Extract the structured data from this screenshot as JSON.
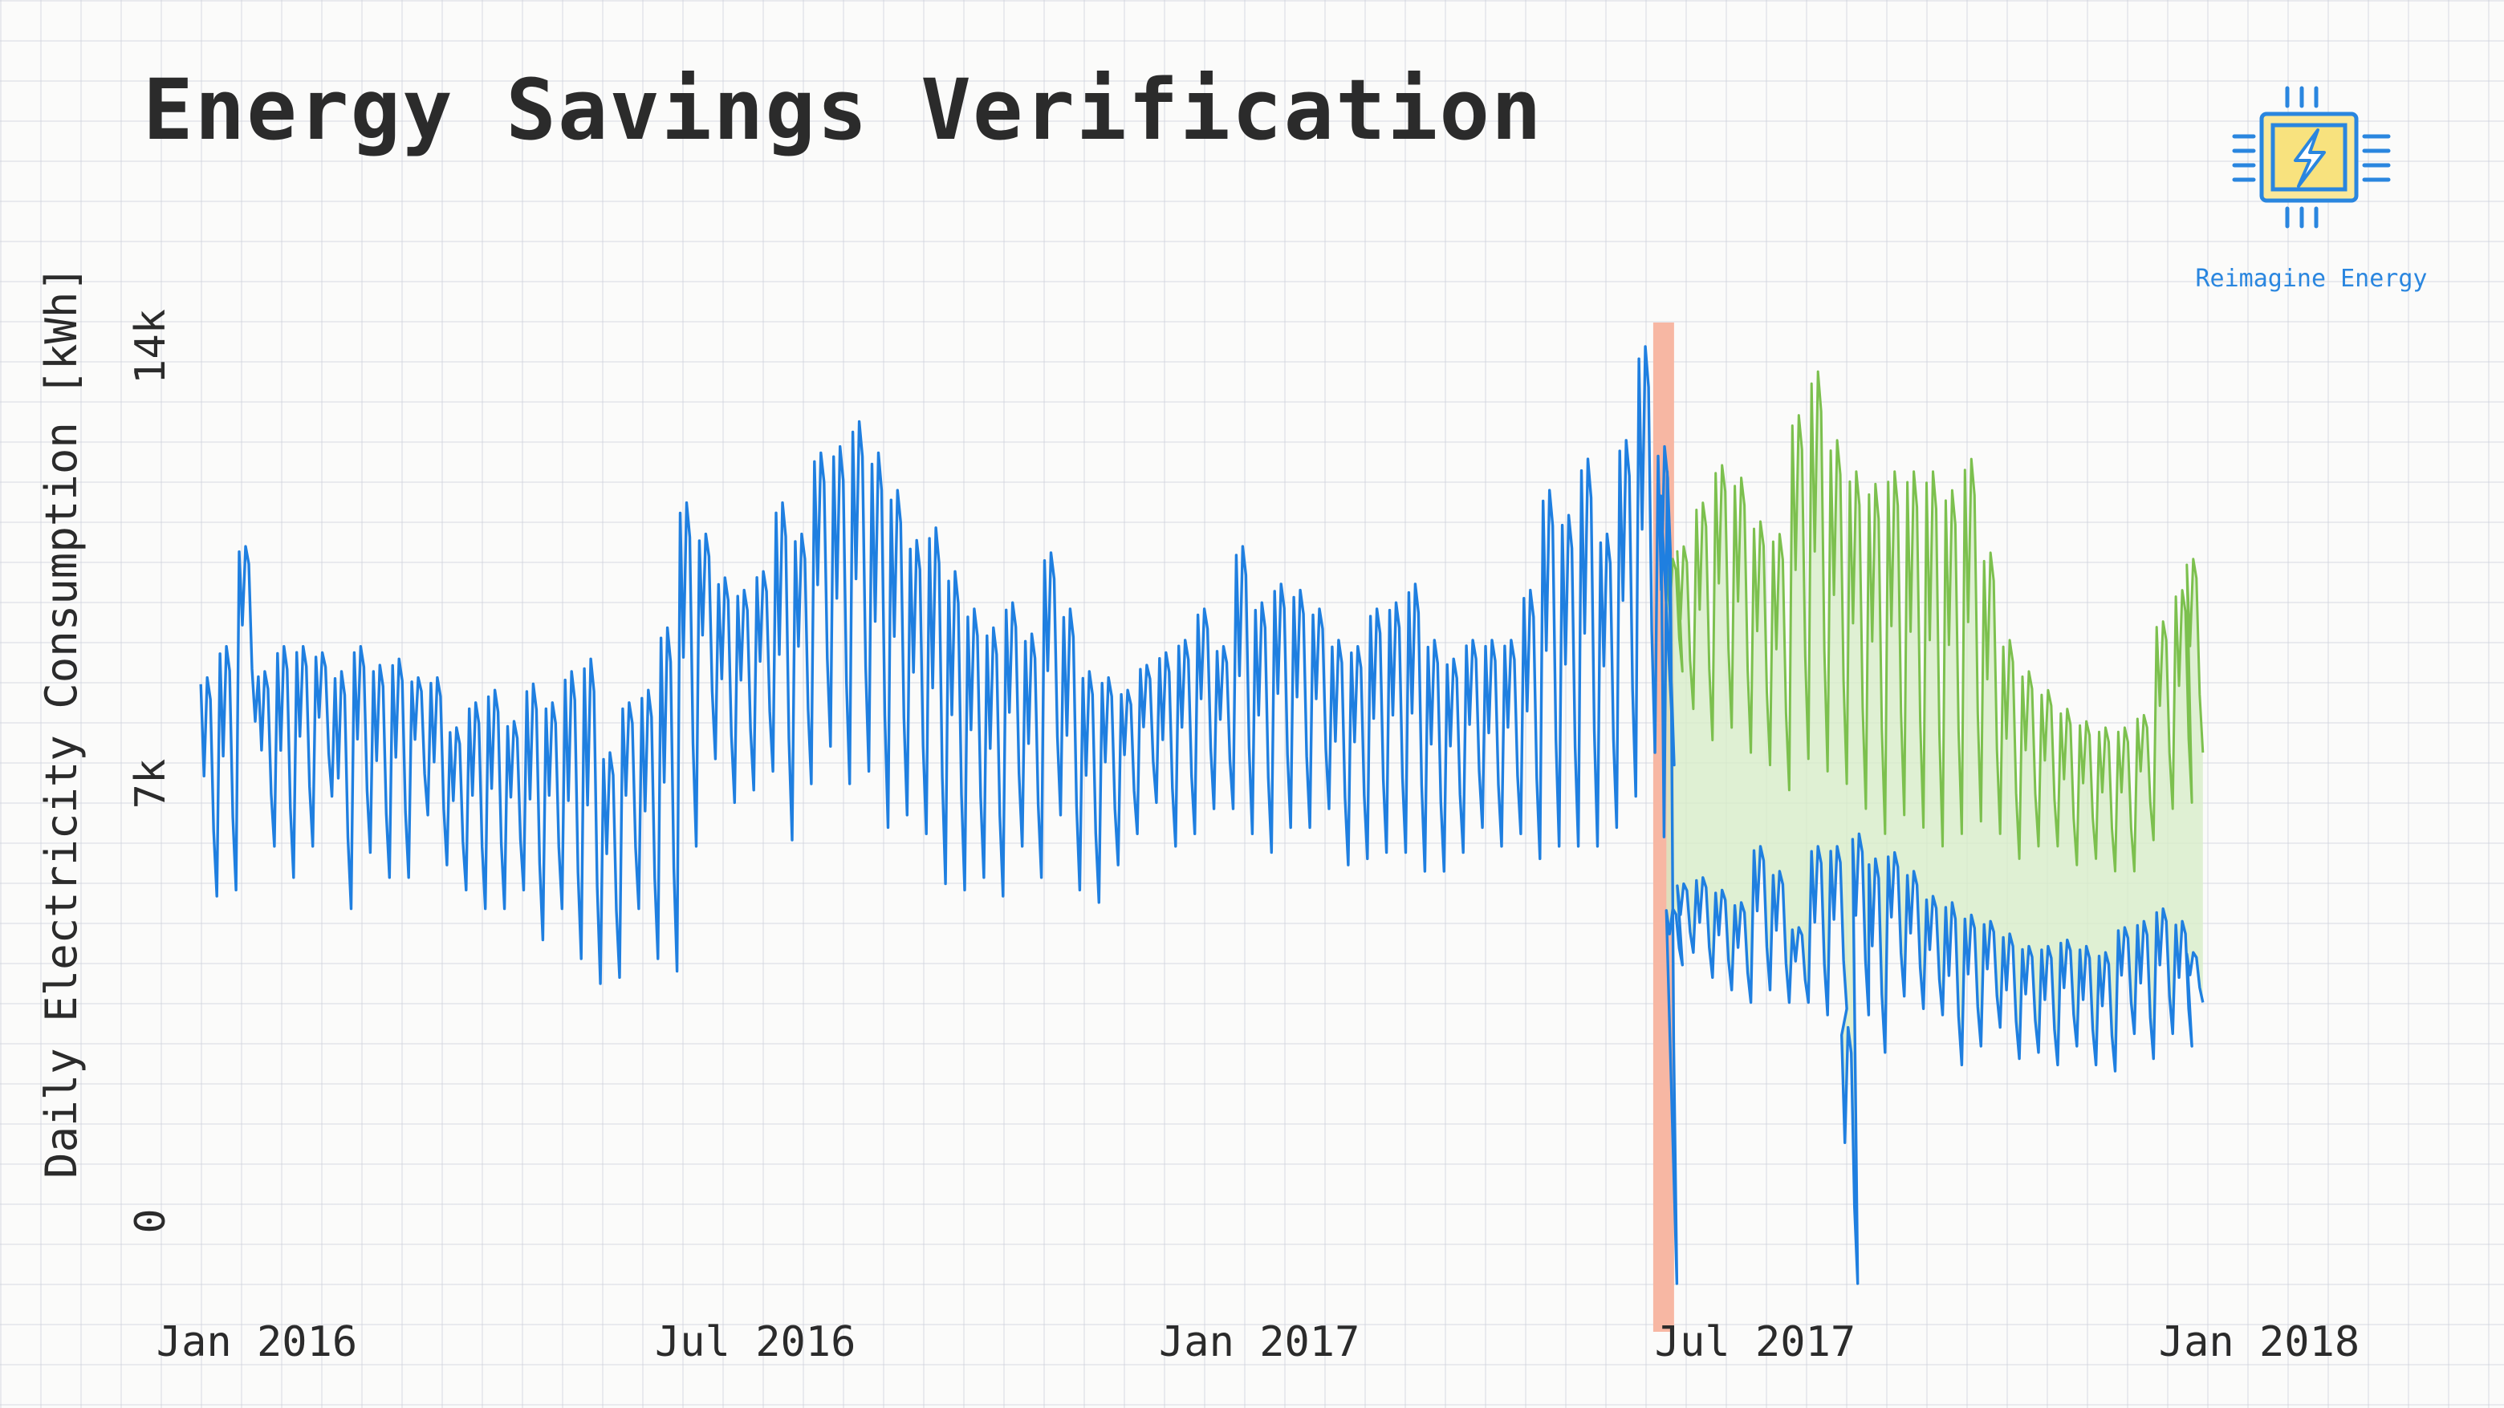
{
  "header": {
    "title": "Energy Savings Verification"
  },
  "brand": {
    "name": "Reimagine Energy",
    "icon": "lightning-chip-icon"
  },
  "colors": {
    "actual": "#1f7fe0",
    "baseline": "#7cc04e",
    "savings_fill": "#d6ecc6",
    "intervention": "#f7b7a3",
    "text": "#2b2b2b"
  },
  "chart_data": {
    "type": "line",
    "title": "Energy Savings Verification",
    "xlabel": "",
    "ylabel": "Daily Electricity Consumption [kWh]",
    "x_range": [
      "2016-01-01",
      "2017-12-31"
    ],
    "ylim": [
      -1500,
      16000
    ],
    "x_ticks": [
      {
        "date": "2016-01-01",
        "label": "Jan 2016"
      },
      {
        "date": "2016-07-01",
        "label": "Jul 2016"
      },
      {
        "date": "2017-01-01",
        "label": "Jan 2017"
      },
      {
        "date": "2017-07-01",
        "label": "Jul 2017"
      },
      {
        "date": "2018-01-01",
        "label": "Jan 2018"
      }
    ],
    "y_ticks": [
      {
        "value": 0,
        "label": "0"
      },
      {
        "value": 7000,
        "label": "7k"
      },
      {
        "value": 14000,
        "label": "14k"
      }
    ],
    "intervention_date": "2017-06-21",
    "legend": "none",
    "grid": true,
    "series": [
      {
        "key": "actual",
        "frequency": "weekly",
        "x": [
          "2016-01-04",
          "2016-01-11",
          "2016-01-18",
          "2016-01-25",
          "2016-02-01",
          "2016-02-08",
          "2016-02-15",
          "2016-02-22",
          "2016-02-29",
          "2016-03-07",
          "2016-03-14",
          "2016-03-21",
          "2016-03-28",
          "2016-04-04",
          "2016-04-11",
          "2016-04-18",
          "2016-04-25",
          "2016-05-02",
          "2016-05-09",
          "2016-05-16",
          "2016-05-23",
          "2016-05-30",
          "2016-06-06",
          "2016-06-13",
          "2016-06-20",
          "2016-06-27",
          "2016-07-04",
          "2016-07-11",
          "2016-07-18",
          "2016-07-25",
          "2016-08-01",
          "2016-08-08",
          "2016-08-15",
          "2016-08-22",
          "2016-08-29",
          "2016-09-05",
          "2016-09-12",
          "2016-09-19",
          "2016-09-26",
          "2016-10-03",
          "2016-10-10",
          "2016-10-17",
          "2016-10-24",
          "2016-10-31",
          "2016-11-07",
          "2016-11-14",
          "2016-11-21",
          "2016-11-28",
          "2016-12-05",
          "2016-12-12",
          "2016-12-19",
          "2016-12-26",
          "2017-01-02",
          "2017-01-09",
          "2017-01-16",
          "2017-01-23",
          "2017-01-30",
          "2017-02-06",
          "2017-02-13",
          "2017-02-20",
          "2017-02-27",
          "2017-03-06",
          "2017-03-13",
          "2017-03-20",
          "2017-03-27",
          "2017-04-03",
          "2017-04-10",
          "2017-04-17",
          "2017-04-24",
          "2017-05-01",
          "2017-05-08",
          "2017-05-15",
          "2017-05-22",
          "2017-05-29",
          "2017-06-05",
          "2017-06-12",
          "2017-06-19",
          "2017-06-20",
          "2017-06-22",
          "2017-06-26",
          "2017-07-03",
          "2017-07-10",
          "2017-07-17",
          "2017-07-24",
          "2017-07-31",
          "2017-08-07",
          "2017-08-14",
          "2017-08-21",
          "2017-08-25",
          "2017-08-29",
          "2017-09-04",
          "2017-09-11",
          "2017-09-18",
          "2017-09-25",
          "2017-10-02",
          "2017-10-09",
          "2017-10-16",
          "2017-10-23",
          "2017-10-30",
          "2017-11-06",
          "2017-11-13",
          "2017-11-20",
          "2017-11-27",
          "2017-12-04",
          "2017-12-11",
          "2017-12-18",
          "2017-12-25",
          "2017-12-29"
        ],
        "low": [
          5200,
          5300,
          8000,
          6000,
          5500,
          6000,
          6800,
          5000,
          5900,
          5500,
          5500,
          6500,
          5700,
          5300,
          5000,
          5000,
          5300,
          4500,
          5000,
          4200,
          3800,
          3900,
          5000,
          4200,
          4000,
          6000,
          7400,
          6700,
          6900,
          7200,
          6100,
          7000,
          7600,
          7000,
          7200,
          6300,
          6500,
          6200,
          5400,
          5300,
          5500,
          5200,
          6000,
          5500,
          6500,
          5300,
          5100,
          5700,
          6200,
          6700,
          6000,
          6200,
          6600,
          6600,
          6200,
          5900,
          6300,
          6300,
          6600,
          5700,
          5800,
          5900,
          5900,
          5600,
          5600,
          5900,
          6300,
          6000,
          6200,
          5800,
          6000,
          6000,
          6000,
          6300,
          6800,
          7500,
          7300,
          -1000,
          4100,
          4300,
          3900,
          3700,
          3500,
          3700,
          3500,
          3500,
          3300,
          3400,
          -1000,
          3300,
          2700,
          3600,
          3400,
          3300,
          2500,
          2800,
          3100,
          2600,
          2700,
          2500,
          2800,
          2500,
          2400,
          3000,
          2600,
          3000,
          2800,
          3500
        ],
        "high": [
          8700,
          9200,
          10800,
          8800,
          9200,
          9200,
          9100,
          8800,
          9200,
          8900,
          9000,
          8700,
          8700,
          7900,
          8300,
          8500,
          8000,
          8600,
          8300,
          8800,
          9000,
          7500,
          8300,
          8500,
          9500,
          11500,
          11000,
          10300,
          10100,
          10400,
          11500,
          11000,
          12300,
          12400,
          12800,
          12300,
          11700,
          10900,
          11100,
          10400,
          9800,
          9500,
          9900,
          9400,
          10700,
          9800,
          8800,
          8700,
          8500,
          8900,
          9100,
          9300,
          9800,
          9200,
          10800,
          9900,
          10200,
          10100,
          9800,
          9300,
          9200,
          9800,
          9900,
          10200,
          9300,
          9000,
          9300,
          9300,
          9300,
          10100,
          11700,
          11300,
          12200,
          11000,
          12500,
          14000,
          12400,
          12000,
          5000,
          5400,
          5500,
          5300,
          5100,
          6000,
          5600,
          4700,
          6000,
          6000,
          3100,
          6200,
          5800,
          5900,
          5600,
          5200,
          5100,
          4900,
          4800,
          4600,
          4400,
          4400,
          4500,
          4400,
          4300,
          4700,
          4800,
          5000,
          4800,
          4300
        ]
      },
      {
        "key": "baseline",
        "frequency": "weekly",
        "x": [
          "2017-06-22",
          "2017-06-26",
          "2017-07-03",
          "2017-07-10",
          "2017-07-17",
          "2017-07-24",
          "2017-07-31",
          "2017-08-07",
          "2017-08-14",
          "2017-08-21",
          "2017-08-28",
          "2017-09-04",
          "2017-09-11",
          "2017-09-18",
          "2017-09-25",
          "2017-10-02",
          "2017-10-09",
          "2017-10-16",
          "2017-10-23",
          "2017-10-30",
          "2017-11-06",
          "2017-11-13",
          "2017-11-20",
          "2017-11-27",
          "2017-12-04",
          "2017-12-11",
          "2017-12-18",
          "2017-12-25",
          "2017-12-29"
        ],
        "low": [
          8800,
          8200,
          7700,
          7900,
          7500,
          7300,
          6900,
          7400,
          7200,
          7000,
          6600,
          6200,
          6500,
          6300,
          6000,
          6200,
          6400,
          6200,
          5800,
          6000,
          6000,
          5700,
          5800,
          5600,
          5600,
          6100,
          6600,
          6700,
          7500
        ],
        "high": [
          10600,
          10800,
          11500,
          12100,
          11900,
          11200,
          11000,
          12900,
          13600,
          12500,
          12000,
          11800,
          12000,
          12000,
          12000,
          11700,
          12200,
          10700,
          9300,
          8800,
          8500,
          8200,
          8000,
          7900,
          7900,
          8100,
          9600,
          10100,
          10600
        ]
      }
    ]
  }
}
